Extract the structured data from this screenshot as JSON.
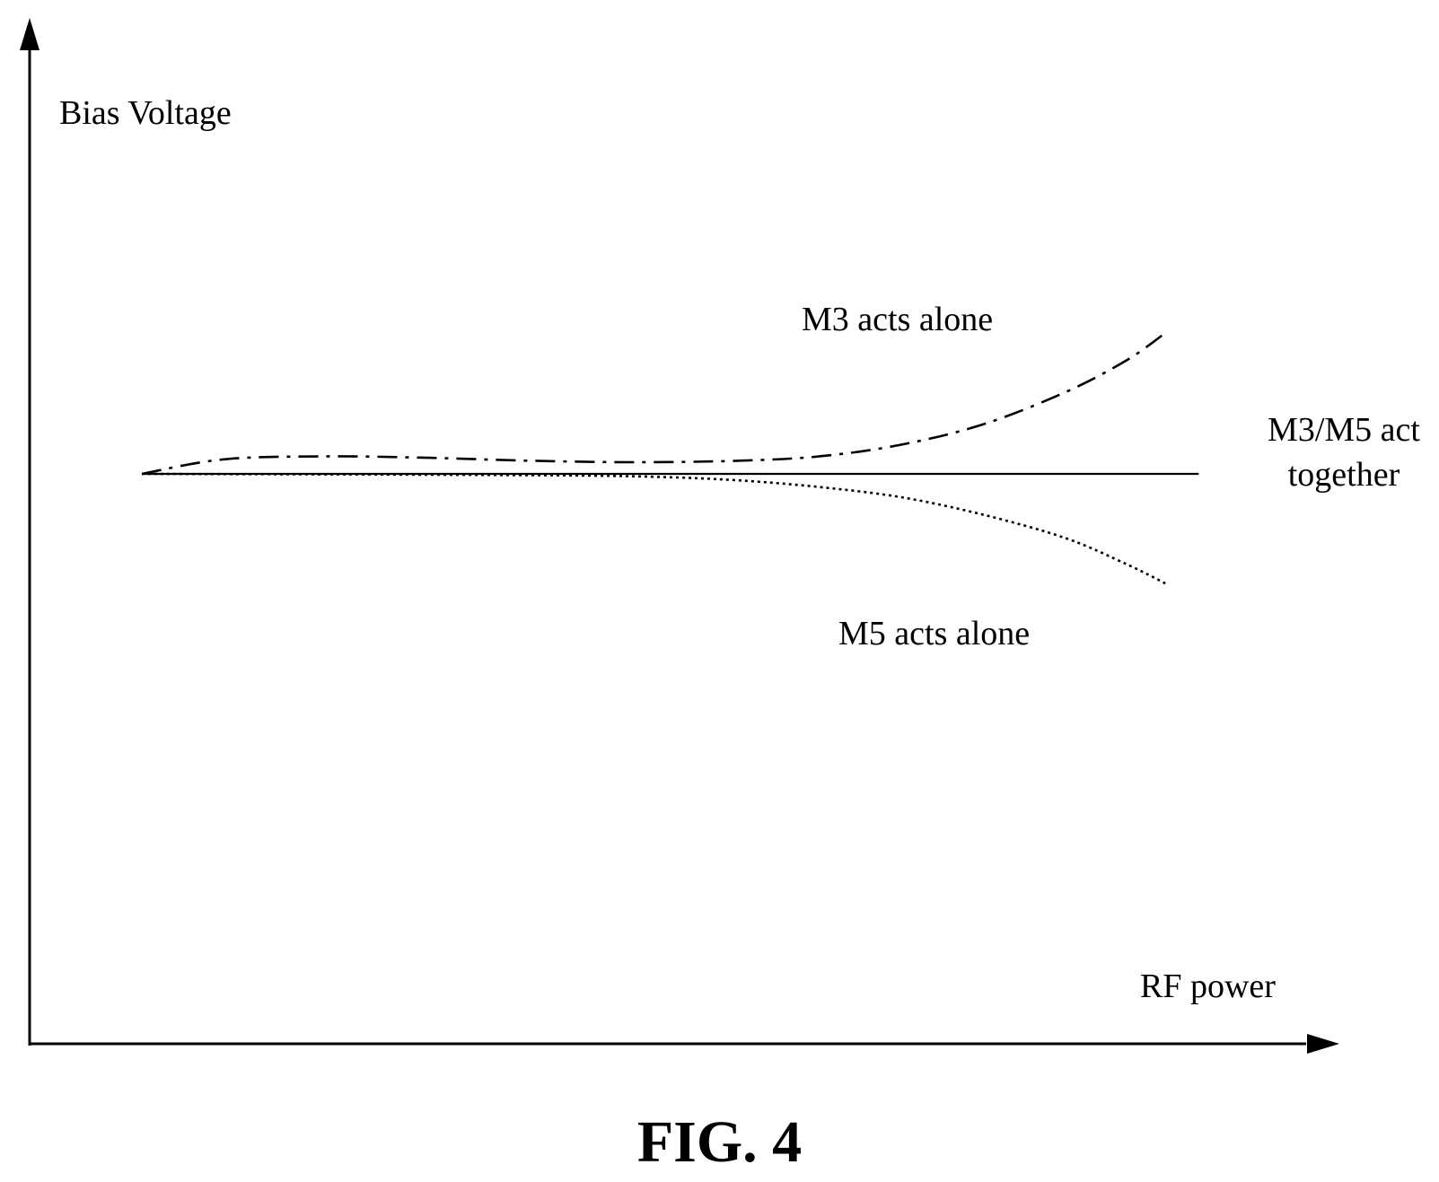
{
  "chart_data": {
    "type": "line",
    "xlabel": "RF power",
    "ylabel": "Bias Voltage",
    "series": [
      {
        "name": "M3 acts alone",
        "style": "dash-dot",
        "x": [
          0,
          0.08,
          0.18,
          0.28,
          0.38,
          0.48,
          0.58,
          0.66,
          0.74,
          0.82,
          0.9,
          0.96,
          1.0
        ],
        "y": [
          0,
          0.05,
          0.06,
          0.055,
          0.045,
          0.04,
          0.045,
          0.06,
          0.1,
          0.17,
          0.28,
          0.39,
          0.49
        ]
      },
      {
        "name": "M3/M5 act together",
        "style": "solid",
        "x": [
          0,
          1.03
        ],
        "y": [
          0,
          0
        ]
      },
      {
        "name": "M5 acts alone",
        "style": "dotted",
        "x": [
          0,
          0.2,
          0.4,
          0.5,
          0.58,
          0.66,
          0.74,
          0.82,
          0.9,
          0.96,
          1.0
        ],
        "y": [
          0,
          -0.002,
          -0.005,
          -0.01,
          -0.022,
          -0.045,
          -0.08,
          -0.14,
          -0.22,
          -0.31,
          -0.38
        ]
      }
    ],
    "annotations": [
      {
        "series": "M3 acts alone",
        "lines": [
          "M3 acts alone"
        ]
      },
      {
        "series": "M3/M5 act together",
        "lines": [
          "M3/M5 act",
          "together"
        ]
      },
      {
        "series": "M5 acts alone",
        "lines": [
          "M5 acts alone"
        ]
      }
    ]
  },
  "caption": "FIG. 4"
}
